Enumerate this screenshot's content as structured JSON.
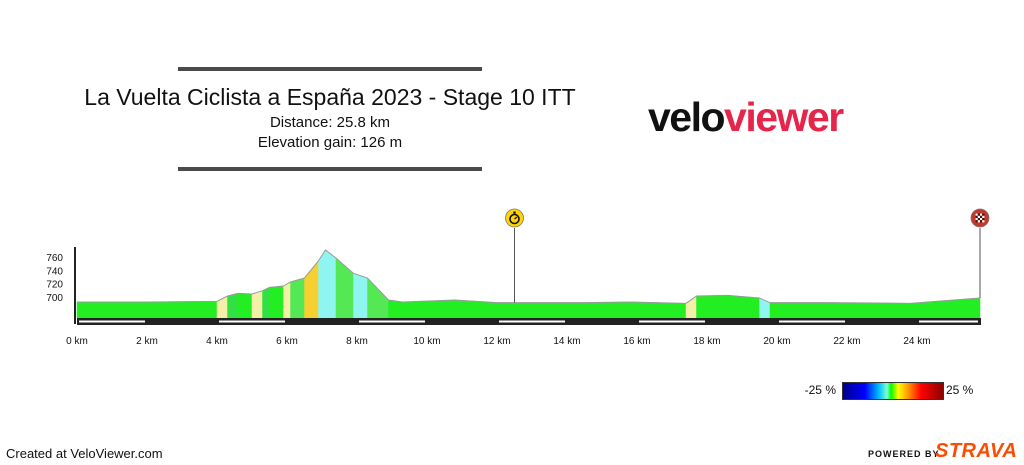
{
  "header": {
    "title": "La Vuelta Ciclista a España 2023 - Stage 10 ITT",
    "distance": "Distance: 25.8 km",
    "elevation": "Elevation gain: 126 m"
  },
  "logo": {
    "part1": "velo",
    "part2": "viewer"
  },
  "chart_data": {
    "type": "area",
    "xlabel": "",
    "ylabel": "",
    "x_unit": "km",
    "xlim": [
      0,
      25.8
    ],
    "ylim": [
      670,
      775
    ],
    "x_ticks": [
      0,
      2,
      4,
      6,
      8,
      10,
      12,
      14,
      16,
      18,
      20,
      22,
      24
    ],
    "x_tick_labels": [
      "0 km",
      "2 km",
      "4 km",
      "6 km",
      "8 km",
      "10 km",
      "12 km",
      "14 km",
      "16 km",
      "18 km",
      "20 km",
      "22 km",
      "24 km"
    ],
    "y_ticks": [
      700,
      720,
      740,
      760
    ],
    "y_tick_labels": [
      "700",
      "720",
      "740",
      "760"
    ],
    "profile": [
      {
        "km": 0.0,
        "ele": 694
      },
      {
        "km": 2.0,
        "ele": 694
      },
      {
        "km": 4.0,
        "ele": 695
      },
      {
        "km": 4.3,
        "ele": 703
      },
      {
        "km": 4.6,
        "ele": 707
      },
      {
        "km": 5.0,
        "ele": 706
      },
      {
        "km": 5.3,
        "ele": 711
      },
      {
        "km": 5.5,
        "ele": 716
      },
      {
        "km": 5.9,
        "ele": 718
      },
      {
        "km": 6.1,
        "ele": 724
      },
      {
        "km": 6.5,
        "ele": 730
      },
      {
        "km": 6.9,
        "ele": 756
      },
      {
        "km": 7.1,
        "ele": 772
      },
      {
        "km": 7.4,
        "ele": 760
      },
      {
        "km": 7.9,
        "ele": 737
      },
      {
        "km": 8.3,
        "ele": 730
      },
      {
        "km": 8.9,
        "ele": 697
      },
      {
        "km": 9.3,
        "ele": 694
      },
      {
        "km": 10.8,
        "ele": 697
      },
      {
        "km": 12.0,
        "ele": 693
      },
      {
        "km": 14.5,
        "ele": 693
      },
      {
        "km": 15.8,
        "ele": 694
      },
      {
        "km": 17.4,
        "ele": 692
      },
      {
        "km": 17.7,
        "ele": 703
      },
      {
        "km": 18.6,
        "ele": 704
      },
      {
        "km": 19.5,
        "ele": 700
      },
      {
        "km": 19.8,
        "ele": 693
      },
      {
        "km": 21.5,
        "ele": 693
      },
      {
        "km": 23.8,
        "ele": 692
      },
      {
        "km": 25.8,
        "ele": 700
      }
    ],
    "segment_colors": [
      "#22ee22",
      "#22ee22",
      "#f4f0a8",
      "#33e044",
      "#22ee22",
      "#f4f0a8",
      "#33e044",
      "#22ee22",
      "#f4f0a8",
      "#55e855",
      "#f5d030",
      "#8ff5f0",
      "#8ff5f0",
      "#55e855",
      "#8ff5f0",
      "#55e855",
      "#22ee22",
      "#22ee22",
      "#22ee22",
      "#22ee22",
      "#22ee22",
      "#22ee22",
      "#f4f0a8",
      "#22ee22",
      "#22ee22",
      "#8ff5f0",
      "#22ee22",
      "#22ee22",
      "#22ee22"
    ],
    "markers": [
      {
        "km": 12.5,
        "type": "stopwatch",
        "icon": "stopwatch-icon",
        "color": "#ffd400"
      },
      {
        "km": 25.8,
        "type": "finish",
        "icon": "checkered-flag-icon",
        "color": "#c0392b"
      }
    ]
  },
  "legend": {
    "min_label": "-25 %",
    "max_label": "25 %"
  },
  "footer": {
    "created": "Created at VeloViewer.com",
    "powered": "POWERED BY",
    "brand": "STRAVA"
  }
}
